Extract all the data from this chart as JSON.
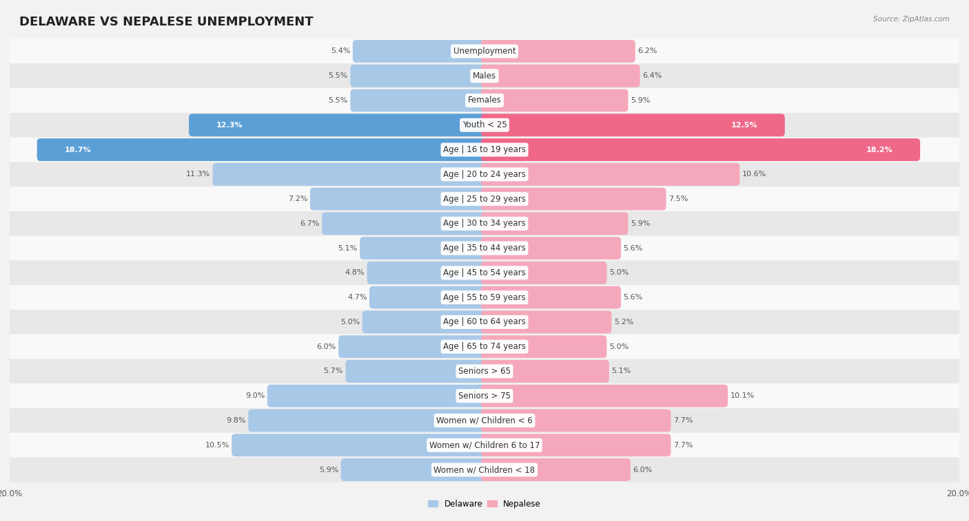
{
  "title": "DELAWARE VS NEPALESE UNEMPLOYMENT",
  "source": "Source: ZipAtlas.com",
  "categories": [
    "Unemployment",
    "Males",
    "Females",
    "Youth < 25",
    "Age | 16 to 19 years",
    "Age | 20 to 24 years",
    "Age | 25 to 29 years",
    "Age | 30 to 34 years",
    "Age | 35 to 44 years",
    "Age | 45 to 54 years",
    "Age | 55 to 59 years",
    "Age | 60 to 64 years",
    "Age | 65 to 74 years",
    "Seniors > 65",
    "Seniors > 75",
    "Women w/ Children < 6",
    "Women w/ Children 6 to 17",
    "Women w/ Children < 18"
  ],
  "delaware": [
    5.4,
    5.5,
    5.5,
    12.3,
    18.7,
    11.3,
    7.2,
    6.7,
    5.1,
    4.8,
    4.7,
    5.0,
    6.0,
    5.7,
    9.0,
    9.8,
    10.5,
    5.9
  ],
  "nepalese": [
    6.2,
    6.4,
    5.9,
    12.5,
    18.2,
    10.6,
    7.5,
    5.9,
    5.6,
    5.0,
    5.6,
    5.2,
    5.0,
    5.1,
    10.1,
    7.7,
    7.7,
    6.0
  ],
  "delaware_color_normal": "#a8c8e8",
  "nepalese_color_normal": "#f5a8bc",
  "delaware_color_highlight": "#5b9fd6",
  "nepalese_color_highlight": "#f06888",
  "highlight_rows": [
    3,
    4
  ],
  "background_color": "#f2f2f2",
  "row_bg_even": "#f9f9f9",
  "row_bg_odd": "#e8e8e8",
  "max_val": 20.0,
  "legend_delaware": "Delaware",
  "legend_nepalese": "Nepalese",
  "title_fontsize": 13,
  "label_fontsize": 8.5,
  "value_fontsize": 8,
  "tick_fontsize": 8.5
}
